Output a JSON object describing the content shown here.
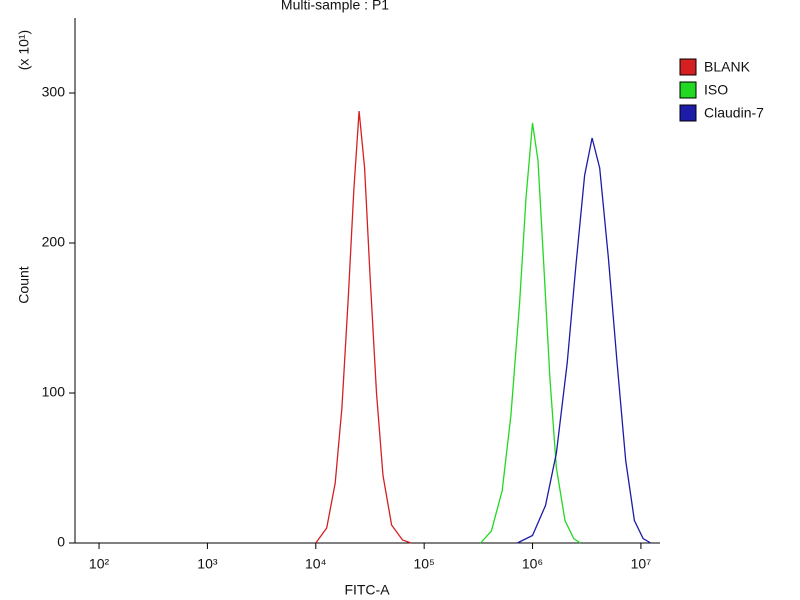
{
  "chart_data": {
    "type": "line",
    "title": "Multi-sample : P1",
    "xlabel": "FITC-A",
    "ylabel": "Count",
    "y_multiplier": "(x 10¹)",
    "xscale": "log",
    "legend": "right",
    "xlim": [
      60,
      15000000
    ],
    "ylim": [
      0,
      350
    ],
    "xticks": [
      {
        "value": 100,
        "label": "10²"
      },
      {
        "value": 1000,
        "label": "10³"
      },
      {
        "value": 10000,
        "label": "10⁴"
      },
      {
        "value": 100000,
        "label": "10⁵"
      },
      {
        "value": 1000000,
        "label": "10⁶"
      },
      {
        "value": 10000000,
        "label": "10⁷"
      }
    ],
    "yticks": [
      0,
      100,
      200,
      300
    ],
    "series": [
      {
        "name": "BLANK",
        "color": "#d42020",
        "x": [
          10000,
          12600,
          15100,
          17400,
          20000,
          22400,
          25100,
          28200,
          31600,
          36300,
          41700,
          50100,
          63100,
          75900
        ],
        "values": [
          0,
          10,
          40,
          90,
          165,
          235,
          288,
          250,
          180,
          100,
          45,
          12,
          2,
          0
        ]
      },
      {
        "name": "ISO",
        "color": "#22d822",
        "x": [
          331000,
          417000,
          525000,
          631000,
          759000,
          871000,
          1000000,
          1122000,
          1259000,
          1445000,
          1660000,
          1995000,
          2399000,
          2754000
        ],
        "values": [
          0,
          8,
          35,
          85,
          160,
          230,
          280,
          255,
          190,
          110,
          50,
          15,
          3,
          0
        ]
      },
      {
        "name": "Claudin-7",
        "color": "#1c1ca8",
        "x": [
          724000,
          1000000,
          1318000,
          1660000,
          2089000,
          2512000,
          3020000,
          3548000,
          4169000,
          5012000,
          6026000,
          7244000,
          8710000,
          10470000,
          12300000
        ],
        "values": [
          0,
          5,
          25,
          60,
          120,
          185,
          245,
          270,
          250,
          190,
          120,
          55,
          15,
          3,
          0
        ]
      }
    ]
  }
}
